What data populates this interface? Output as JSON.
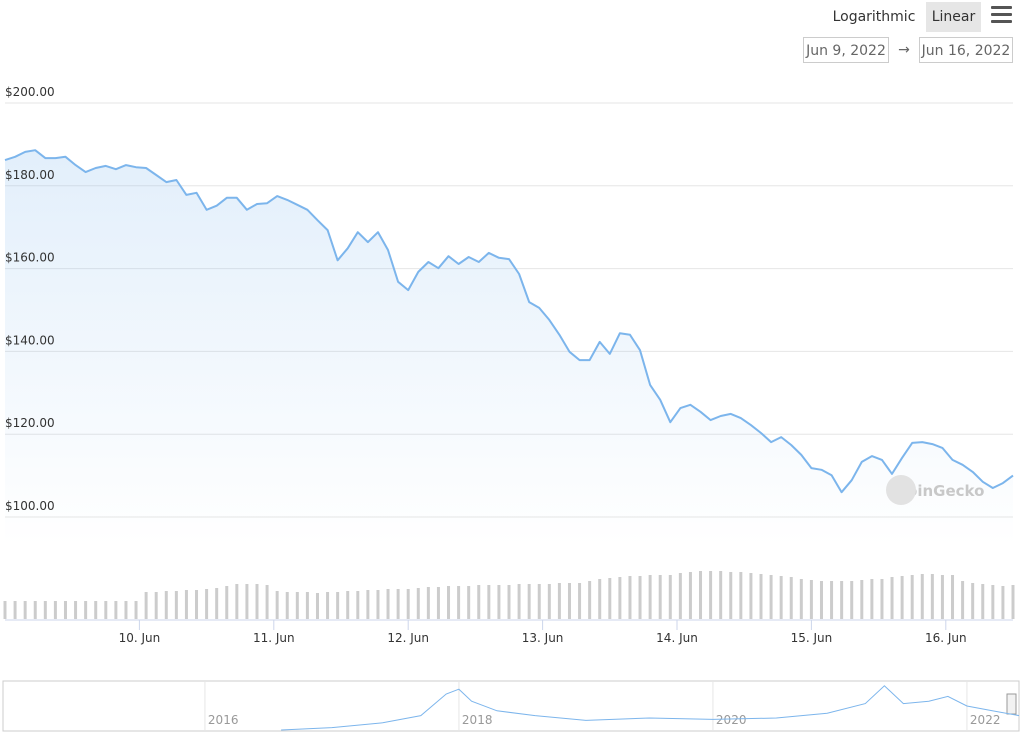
{
  "chart_data": {
    "type": "line",
    "color": "#7cb5ec",
    "x": [
      9,
      9.075,
      9.15,
      9.225,
      9.3,
      9.375,
      9.45,
      9.525,
      9.6,
      9.675,
      9.75,
      9.825,
      9.9,
      9.975,
      10.05,
      10.125,
      10.2,
      10.275,
      10.35,
      10.425,
      10.5,
      10.575,
      10.65,
      10.725,
      10.8,
      10.875,
      10.95,
      11.025,
      11.1,
      11.175,
      11.25,
      11.325,
      11.4,
      11.475,
      11.55,
      11.625,
      11.7,
      11.775,
      11.85,
      11.925,
      12,
      12.075,
      12.15,
      12.225,
      12.3,
      12.375,
      12.45,
      12.525,
      12.6,
      12.675,
      12.75,
      12.825,
      12.9,
      12.975,
      13.05,
      13.125,
      13.2,
      13.275,
      13.35,
      13.425,
      13.5,
      13.575,
      13.65,
      13.725,
      13.8,
      13.875,
      13.95,
      14.025,
      14.1,
      14.175,
      14.25,
      14.325,
      14.4,
      14.475,
      14.55,
      14.625,
      14.7,
      14.775,
      14.85,
      14.925,
      15,
      15.075,
      15.15,
      15.225,
      15.3,
      15.375,
      15.45,
      15.525,
      15.6,
      15.675,
      15.75,
      15.825,
      15.9,
      15.975,
      16.05,
      16.125,
      16.2,
      16.275,
      16.35,
      16.425,
      16.5
    ],
    "values": [
      186.2,
      187,
      188.2,
      188.6,
      186.7,
      186.7,
      187,
      185,
      183.3,
      184.3,
      184.8,
      184,
      185,
      184.5,
      184.3,
      182.6,
      180.9,
      181.4,
      177.8,
      178.3,
      174.2,
      175.2,
      177.1,
      177.1,
      174.2,
      175.6,
      175.8,
      177.5,
      176.6,
      175.4,
      174.2,
      171.7,
      169.3,
      162,
      164.9,
      168.8,
      166.4,
      168.8,
      164.5,
      156.8,
      154.8,
      159.2,
      161.6,
      160.1,
      163,
      161.1,
      162.8,
      161.6,
      163.8,
      162.6,
      162.3,
      158.7,
      151.9,
      150.5,
      147.6,
      144,
      139.9,
      137.9,
      137.9,
      142.3,
      139.4,
      144.4,
      144,
      140.3,
      131.9,
      128.3,
      122.9,
      126.3,
      127.1,
      125.4,
      123.4,
      124.4,
      124.9,
      123.9,
      122.2,
      120.3,
      118.1,
      119.3,
      117.4,
      115,
      111.8,
      111.4,
      110.1,
      106,
      108.9,
      113.3,
      114.7,
      113.8,
      110.4,
      114.3,
      117.9,
      118.1,
      117.6,
      116.7,
      113.8,
      112.6,
      110.9,
      108.5,
      107,
      108.2,
      110
    ],
    "xlim": [
      9,
      16.5
    ],
    "xticks": [
      {
        "value": 10,
        "label": "10. Jun"
      },
      {
        "value": 11,
        "label": "11. Jun"
      },
      {
        "value": 12,
        "label": "12. Jun"
      },
      {
        "value": 13,
        "label": "13. Jun"
      },
      {
        "value": 14,
        "label": "14. Jun"
      },
      {
        "value": 15,
        "label": "15. Jun"
      },
      {
        "value": 16,
        "label": "16. Jun"
      }
    ],
    "ylim": [
      100,
      200
    ],
    "yticks": [
      {
        "value": 100,
        "label": "$100.00"
      },
      {
        "value": 120,
        "label": "$120.00"
      },
      {
        "value": 140,
        "label": "$140.00"
      },
      {
        "value": 160,
        "label": "$160.00"
      },
      {
        "value": 180,
        "label": "$180.00"
      },
      {
        "value": 200,
        "label": "$200.00"
      }
    ],
    "grid": true,
    "volume": {
      "color": "#cccccc",
      "ylim": [
        0,
        100
      ],
      "values": [
        18,
        18,
        18,
        18,
        18,
        18,
        18,
        18,
        18,
        18,
        18,
        18,
        18,
        18,
        27,
        27,
        28,
        28,
        29,
        29,
        30,
        31,
        33,
        35,
        35,
        35,
        34,
        28,
        27,
        27,
        27,
        26,
        27,
        27,
        28,
        28,
        29,
        29,
        30,
        30,
        30,
        31,
        32,
        32,
        33,
        33,
        33,
        34,
        34,
        34,
        34,
        35,
        35,
        35,
        35,
        36,
        36,
        36,
        38,
        40,
        41,
        42,
        43,
        43,
        44,
        44,
        44,
        46,
        47,
        48,
        48,
        48,
        47,
        47,
        46,
        45,
        44,
        43,
        42,
        40,
        39,
        38,
        38,
        38,
        38,
        39,
        40,
        40,
        42,
        43,
        44,
        45,
        45,
        44,
        44,
        38,
        36,
        35,
        34,
        33,
        34
      ]
    },
    "navigator": {
      "color": "#7cb5ec",
      "x": [
        2016.6,
        2017.0,
        2017.4,
        2017.7,
        2017.9,
        2018.0,
        2018.1,
        2018.3,
        2018.6,
        2019.0,
        2019.5,
        2020.0,
        2020.5,
        2020.9,
        2021.2,
        2021.35,
        2021.5,
        2021.7,
        2021.85,
        2022.0,
        2022.2,
        2022.41
      ],
      "values": [
        0,
        5,
        15,
        30,
        75,
        85,
        60,
        40,
        30,
        20,
        25,
        22,
        25,
        35,
        55,
        92,
        55,
        60,
        70,
        50,
        40,
        30
      ],
      "xlim": [
        2014.41,
        2022.41
      ],
      "ylim": [
        0,
        100
      ],
      "xticks": [
        2016,
        2018,
        2020,
        2022
      ]
    }
  },
  "controls": {
    "scale_options": [
      "Logarithmic",
      "Linear"
    ],
    "selected_index": 1,
    "date_from": "Jun 9, 2022",
    "arrow": "→",
    "date_to": "Jun 16, 2022"
  },
  "watermark": "CoinGecko"
}
